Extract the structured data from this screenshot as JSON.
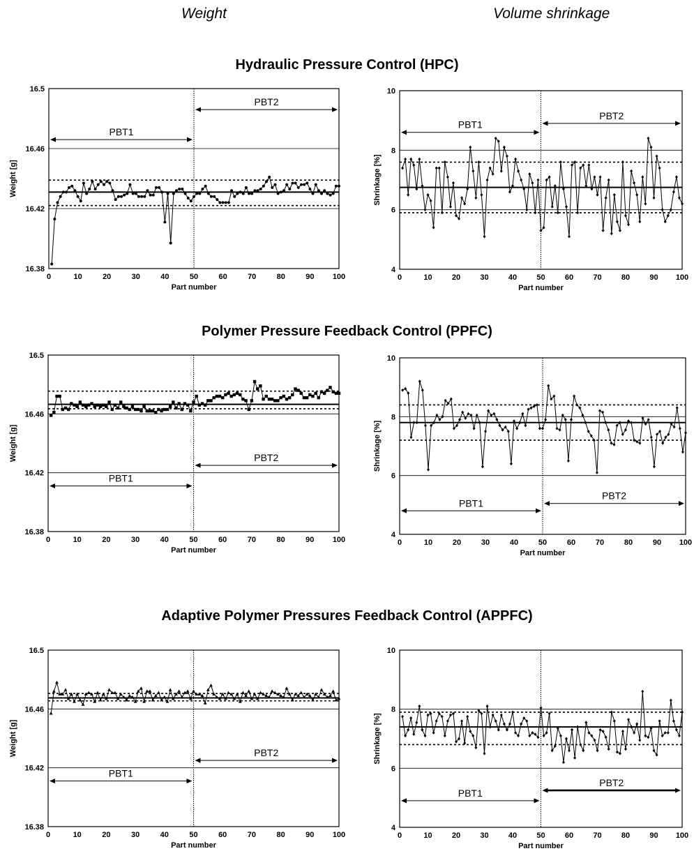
{
  "column_headers": {
    "left": "Weight",
    "right": "Volume shrinkage"
  },
  "sections": [
    "Hydraulic Pressure Control (HPC)",
    "Polymer Pressure Feedback Control (PPFC)",
    "Adaptive Polymer Pressures Feedback Control (APPFC)"
  ],
  "chart_data": [
    {
      "id": "hpc-weight",
      "type": "line",
      "section": "Hydraulic Pressure Control (HPC)",
      "xlabel": "Part number",
      "ylabel": "Weight [g]",
      "xlim": [
        0,
        100
      ],
      "ylim": [
        16.38,
        16.5
      ],
      "xticks": [
        "0",
        "10",
        "20",
        "30",
        "40",
        "50",
        "60",
        "70",
        "80",
        "90",
        "100"
      ],
      "yticks": [
        "16.38",
        "16.42",
        "16.46",
        "16.5"
      ],
      "grid_y": [
        16.42,
        16.46
      ],
      "mean": 16.431,
      "limits": [
        16.422,
        16.439
      ],
      "divider_x": 50,
      "annotations": [
        {
          "label": "PBT1",
          "from": 0,
          "to": 50,
          "y": 16.466
        },
        {
          "label": "PBT2",
          "from": 50,
          "to": 100,
          "y": 16.486
        }
      ],
      "marker": "circle",
      "series": [
        {
          "x_start": 1,
          "values": [
            16.383,
            16.413,
            16.424,
            16.428,
            16.431,
            16.431,
            16.434,
            16.435,
            16.432,
            16.428,
            16.425,
            16.437,
            16.43,
            16.433,
            16.438,
            16.433,
            16.436,
            16.438,
            16.436,
            16.438,
            16.437,
            16.432,
            16.426,
            16.428,
            16.428,
            16.429,
            16.43,
            16.436,
            16.43,
            16.43,
            16.428,
            16.428,
            16.428,
            16.432,
            16.429,
            16.429,
            16.434,
            16.434,
            16.431,
            16.411,
            16.43,
            16.397,
            16.43,
            16.432,
            16.433,
            16.433,
            16.43,
            16.427,
            16.425,
            16.428,
            16.43,
            16.43,
            16.433,
            16.435,
            16.43,
            16.428,
            16.428,
            16.426,
            16.424,
            16.424,
            16.424,
            16.424,
            16.432,
            16.428,
            16.43,
            16.431,
            16.43,
            16.434,
            16.43,
            16.43,
            16.432,
            16.432,
            16.433,
            16.435,
            16.438,
            16.441,
            16.434,
            16.436,
            16.43,
            16.431,
            16.432,
            16.436,
            16.433,
            16.437,
            16.437,
            16.434,
            16.436,
            16.436,
            16.437,
            16.433,
            16.43,
            16.436,
            16.432,
            16.43,
            16.432,
            16.43,
            16.429,
            16.43,
            16.435,
            16.435
          ]
        }
      ]
    },
    {
      "id": "hpc-shrinkage",
      "type": "line",
      "section": "Hydraulic Pressure Control (HPC)",
      "xlabel": "Part number",
      "ylabel": "Shrinkage [%]",
      "xlim": [
        0,
        100
      ],
      "ylim": [
        4,
        10
      ],
      "xticks": [
        "0",
        "10",
        "20",
        "30",
        "40",
        "50",
        "60",
        "70",
        "80",
        "90",
        "100"
      ],
      "yticks": [
        "4",
        "6",
        "8",
        "10"
      ],
      "grid_y": [
        6,
        8
      ],
      "mean": 6.75,
      "limits": [
        5.9,
        7.6
      ],
      "divider_x": 50,
      "annotations": [
        {
          "label": "PBT1",
          "from": 0,
          "to": 50,
          "y": 8.6
        },
        {
          "label": "PBT2",
          "from": 50,
          "to": 100,
          "y": 8.9
        }
      ],
      "marker": "diamond",
      "series": [
        {
          "x_start": 1,
          "values": [
            7.4,
            7.7,
            6.5,
            7.7,
            7.5,
            6.7,
            7.7,
            6.8,
            6,
            6.5,
            6.3,
            5.4,
            7.4,
            7.4,
            5.9,
            7.6,
            7.1,
            6.1,
            6.9,
            5.8,
            5.7,
            6.4,
            6.2,
            6.7,
            8.1,
            7.3,
            6.4,
            7.6,
            6.5,
            5.1,
            7,
            7.4,
            7.2,
            8.4,
            8.3,
            7.3,
            8.1,
            7.8,
            6.6,
            6.8,
            7.7,
            7.3,
            7,
            6.7,
            6,
            7.2,
            6.9,
            5.9,
            7,
            5.3,
            5.4,
            7,
            7.1,
            6.1,
            6.8,
            5.9,
            7.6,
            6.7,
            6.1,
            5.1,
            7.5,
            7.6,
            5.9,
            7.4,
            7.5,
            6.8,
            7.5,
            6.7,
            7.1,
            6.5,
            7.1,
            5.3,
            6.4,
            7,
            5.2,
            6.5,
            5.6,
            5.3,
            7.6,
            5.8,
            5.5,
            7.3,
            6.9,
            6.5,
            5.6,
            7.1,
            6.2,
            8.4,
            8.1,
            6.4,
            7.8,
            7.4,
            6,
            5.6,
            5.8,
            6,
            6.6,
            7.1,
            6.4,
            6.2
          ]
        }
      ]
    },
    {
      "id": "ppfc-weight",
      "type": "line",
      "section": "Polymer Pressure Feedback Control (PPFC)",
      "xlabel": "Part number",
      "ylabel": "Weight [g]",
      "xlim": [
        0,
        100
      ],
      "ylim": [
        16.38,
        16.5
      ],
      "xticks": [
        "0",
        "10",
        "20",
        "30",
        "40",
        "50",
        "60",
        "70",
        "80",
        "90",
        "100"
      ],
      "yticks": [
        "16.38",
        "16.42",
        "16.46",
        "16.5"
      ],
      "grid_y": [
        16.42,
        16.46
      ],
      "mean": 16.4665,
      "limits": [
        16.4635,
        16.4755
      ],
      "divider_x": 50,
      "annotations": [
        {
          "label": "PBT1",
          "from": 0,
          "to": 50,
          "y": 16.411
        },
        {
          "label": "PBT2",
          "from": 50,
          "to": 100,
          "y": 16.425
        }
      ],
      "marker": "square",
      "series": [
        {
          "x_start": 1,
          "values": [
            16.459,
            16.461,
            16.472,
            16.472,
            16.463,
            16.464,
            16.463,
            16.467,
            16.466,
            16.465,
            16.468,
            16.466,
            16.465,
            16.466,
            16.467,
            16.465,
            16.466,
            16.465,
            16.466,
            16.465,
            16.468,
            16.463,
            16.466,
            16.464,
            16.468,
            16.465,
            16.464,
            16.463,
            16.465,
            16.463,
            16.463,
            16.462,
            16.465,
            16.462,
            16.462,
            16.462,
            16.461,
            16.463,
            16.462,
            16.463,
            16.463,
            16.465,
            16.468,
            16.464,
            16.467,
            16.463,
            16.467,
            16.466,
            16.462,
            16.468,
            16.472,
            16.466,
            16.467,
            16.466,
            16.469,
            16.469,
            16.471,
            16.472,
            16.472,
            16.471,
            16.473,
            16.474,
            16.472,
            16.473,
            16.474,
            16.473,
            16.47,
            16.469,
            16.463,
            16.469,
            16.482,
            16.477,
            16.479,
            16.47,
            16.472,
            16.47,
            16.47,
            16.469,
            16.469,
            16.471,
            16.472,
            16.47,
            16.471,
            16.473,
            16.477,
            16.476,
            16.474,
            16.471,
            16.471,
            16.473,
            16.472,
            16.474,
            16.471,
            16.475,
            16.474,
            16.476,
            16.478,
            16.475,
            16.474,
            16.474
          ]
        }
      ]
    },
    {
      "id": "ppfc-shrinkage",
      "type": "line",
      "section": "Polymer Pressure Feedback Control (PPFC)",
      "xlabel": "Part number",
      "ylabel": "Shrinkage [%]",
      "xlim": [
        0,
        100
      ],
      "ylim": [
        4,
        10
      ],
      "xticks": [
        "0",
        "10",
        "20",
        "30",
        "40",
        "50",
        "60",
        "70",
        "80",
        "90",
        "100"
      ],
      "yticks": [
        "4",
        "6",
        "8",
        "10"
      ],
      "grid_y": [
        6,
        8
      ],
      "mean": 7.8,
      "limits": [
        7.2,
        8.4
      ],
      "divider_x": 50,
      "annotations": [
        {
          "label": "PBT1",
          "from": 0,
          "to": 50,
          "y": 4.8
        },
        {
          "label": "PBT2",
          "from": 50,
          "to": 100,
          "y": 5.05
        }
      ],
      "marker": "diamond",
      "series": [
        {
          "x_start": 1,
          "values": [
            8.9,
            8.95,
            8.8,
            7.3,
            7.8,
            7.8,
            9.2,
            8.9,
            7.7,
            6.2,
            7.7,
            7.8,
            8.05,
            7.9,
            8,
            8.55,
            8.45,
            8.6,
            7.6,
            7.7,
            7.9,
            8.15,
            7.95,
            8.1,
            8.05,
            7.6,
            8.05,
            7.8,
            6.3,
            7.5,
            8.2,
            8.05,
            8.1,
            7.9,
            7.7,
            7.55,
            7.65,
            7.5,
            6.4,
            7.85,
            7.6,
            7.8,
            8.1,
            7.7,
            8.25,
            8.3,
            8.35,
            8.4,
            7.6,
            7.6,
            7.9,
            9.05,
            8.6,
            8.7,
            7.6,
            7.55,
            8.05,
            7.9,
            6.5,
            7.9,
            8.7,
            8.4,
            8.3,
            8.05,
            7.8,
            7.5,
            7.35,
            7.2,
            6.1,
            8.2,
            8.15,
            7.8,
            7.55,
            7.1,
            7.05,
            7.7,
            7.8,
            7.4,
            7.55,
            7.85,
            7.8,
            7.2,
            7.15,
            7.1,
            7.95,
            7.75,
            7.9,
            7.3,
            6.3,
            7.4,
            7.5,
            7.1,
            7.3,
            7.4,
            7.75,
            7.65,
            8.3,
            7.6,
            6.8,
            7.45
          ]
        }
      ]
    },
    {
      "id": "appfc-weight",
      "type": "line",
      "section": "Adaptive Polymer Pressures Feedback Control (APPFC)",
      "xlabel": "Part number",
      "ylabel": "Weight [g]",
      "xlim": [
        0,
        100
      ],
      "ylim": [
        16.38,
        16.5
      ],
      "xticks": [
        "0",
        "10",
        "20",
        "30",
        "40",
        "50",
        "60",
        "70",
        "80",
        "90",
        "100"
      ],
      "yticks": [
        "16.38",
        "16.42",
        "16.46",
        "16.5"
      ],
      "grid_y": [
        16.42,
        16.46
      ],
      "mean": 16.4675,
      "limits": [
        16.4655,
        16.4705
      ],
      "divider_x": 50,
      "annotations": [
        {
          "label": "PBT1",
          "from": 0,
          "to": 50,
          "y": 16.411
        },
        {
          "label": "PBT2",
          "from": 50,
          "to": 100,
          "y": 16.425
        }
      ],
      "marker": "triangle",
      "series": [
        {
          "x_start": 1,
          "values": [
            16.457,
            16.472,
            16.478,
            16.47,
            16.47,
            16.473,
            16.467,
            16.47,
            16.465,
            16.47,
            16.466,
            16.463,
            16.47,
            16.471,
            16.47,
            16.465,
            16.471,
            16.466,
            16.47,
            16.467,
            16.473,
            16.471,
            16.471,
            16.467,
            16.47,
            16.468,
            16.466,
            16.469,
            16.468,
            16.465,
            16.472,
            16.474,
            16.465,
            16.472,
            16.472,
            16.466,
            16.469,
            16.471,
            16.466,
            16.468,
            16.465,
            16.473,
            16.467,
            16.47,
            16.472,
            16.468,
            16.471,
            16.472,
            16.467,
            16.472,
            16.47,
            16.47,
            16.469,
            16.464,
            16.473,
            16.476,
            16.47,
            16.468,
            16.467,
            16.47,
            16.467,
            16.471,
            16.47,
            16.467,
            16.47,
            16.465,
            16.471,
            16.469,
            16.472,
            16.467,
            16.47,
            16.467,
            16.471,
            16.47,
            16.469,
            16.468,
            16.472,
            16.471,
            16.47,
            16.469,
            16.468,
            16.474,
            16.47,
            16.466,
            16.47,
            16.469,
            16.471,
            16.468,
            16.47,
            16.469,
            16.466,
            16.47,
            16.468,
            16.473,
            16.47,
            16.468,
            16.469,
            16.472,
            16.466,
            16.467
          ]
        }
      ]
    },
    {
      "id": "appfc-shrinkage",
      "type": "line",
      "section": "Adaptive Polymer Pressures Feedback Control (APPFC)",
      "xlabel": "Part number",
      "ylabel": "Shrinkage [%]",
      "xlim": [
        0,
        100
      ],
      "ylim": [
        4,
        10
      ],
      "xticks": [
        "0",
        "10",
        "20",
        "30",
        "40",
        "50",
        "60",
        "70",
        "80",
        "90",
        "100"
      ],
      "yticks": [
        "4",
        "6",
        "8",
        "10"
      ],
      "grid_y": [
        6,
        8
      ],
      "mean": 7.4,
      "limits": [
        6.8,
        7.9
      ],
      "divider_x": 50,
      "annotations": [
        {
          "label": "PBT1",
          "from": 0,
          "to": 50,
          "y": 4.9
        },
        {
          "label": "PBT2",
          "from": 50,
          "to": 100,
          "y": 5.25
        }
      ],
      "marker": "diamond",
      "series": [
        {
          "x_start": 1,
          "values": [
            7.75,
            7.1,
            7.3,
            7.7,
            7.15,
            7.55,
            8.1,
            7.3,
            7.1,
            7.8,
            7.85,
            7.2,
            7.6,
            7.85,
            7.75,
            7.1,
            7.6,
            7.8,
            7.85,
            6.9,
            7,
            7.6,
            6.85,
            7.75,
            7.25,
            7.1,
            6.7,
            7.95,
            7.85,
            6.5,
            8.1,
            7.4,
            7.8,
            7.6,
            7.3,
            7.8,
            7.5,
            7.3,
            7.5,
            7.9,
            7.2,
            7.1,
            7.5,
            7.7,
            7.6,
            7.1,
            7.2,
            7.15,
            7.05,
            8.05,
            7.1,
            7.2,
            7.85,
            6.6,
            6.75,
            7.35,
            7.1,
            6.2,
            7,
            6.6,
            7.3,
            6.35,
            7.4,
            6.8,
            6.6,
            7.55,
            7.2,
            7.1,
            6.95,
            6.6,
            7.3,
            7.25,
            7.05,
            6.65,
            7.9,
            7.6,
            6.55,
            6.5,
            7.25,
            6.65,
            7.65,
            7.4,
            7.2,
            7.5,
            6.95,
            8.6,
            7.1,
            7.05,
            7.35,
            6.6,
            6.45,
            7.6,
            7.1,
            7.2,
            7.2,
            8.3,
            7.6,
            7.3,
            7.1,
            7.9
          ]
        }
      ]
    }
  ]
}
